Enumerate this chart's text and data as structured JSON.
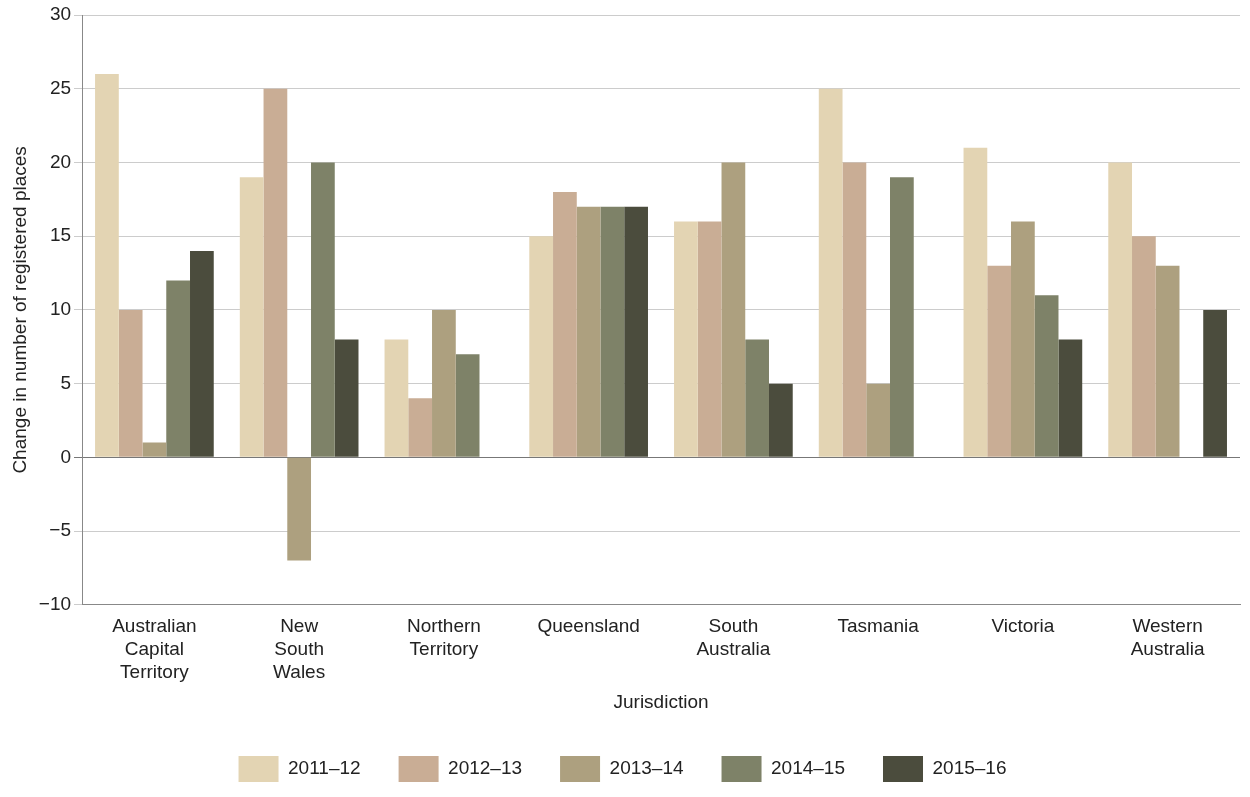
{
  "chart_data": {
    "type": "bar",
    "xlabel": "Jurisdiction",
    "ylabel": "Change in number of registered places",
    "categories": [
      "Australian Capital Territory",
      "New South Wales",
      "Northern Territory",
      "Queensland",
      "South Australia",
      "Tasmania",
      "Victoria",
      "Western Australia"
    ],
    "series": [
      {
        "name": "2011–12",
        "color": "#e3d4b3",
        "values": [
          26,
          19,
          8,
          15,
          16,
          25,
          21,
          20
        ]
      },
      {
        "name": "2012–13",
        "color": "#c9ad95",
        "values": [
          10,
          25,
          4,
          18,
          16,
          20,
          13,
          15
        ]
      },
      {
        "name": "2013–14",
        "color": "#ada07f",
        "values": [
          1,
          -7,
          10,
          17,
          20,
          5,
          16,
          13
        ]
      },
      {
        "name": "2014–15",
        "color": "#7e8268",
        "values": [
          12,
          20,
          7,
          17,
          8,
          19,
          11,
          0
        ]
      },
      {
        "name": "2015–16",
        "color": "#4b4c3d",
        "values": [
          14,
          8,
          0,
          17,
          5,
          0,
          8,
          10
        ]
      }
    ],
    "ylim": [
      -10,
      30
    ],
    "yticks": [
      {
        "value": -10,
        "label": "−10"
      },
      {
        "value": -5,
        "label": "−5"
      },
      0,
      5,
      10,
      15,
      20,
      25,
      30
    ],
    "grid": "y",
    "legend": "bottom"
  }
}
